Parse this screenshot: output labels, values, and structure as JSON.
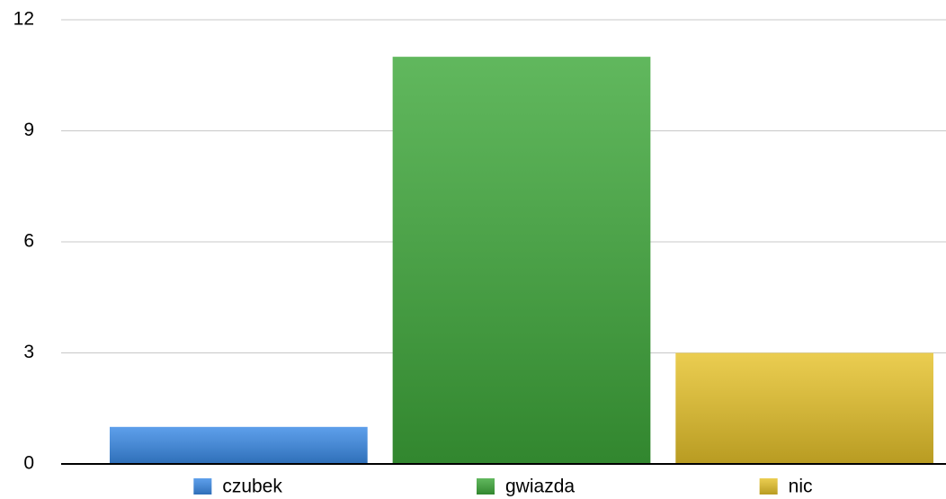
{
  "chart_data": {
    "type": "bar",
    "categories": [
      null
    ],
    "series": [
      {
        "name": "czubek",
        "color": "#3a8ae6",
        "values": [
          1
        ]
      },
      {
        "name": "gwiazda",
        "color": "#3ea83a",
        "values": [
          11
        ]
      },
      {
        "name": "nic",
        "color": "#e6c22a",
        "values": [
          3
        ]
      }
    ],
    "ylim": [
      0,
      12
    ],
    "yticks": [
      0,
      3,
      6,
      9,
      12
    ],
    "grid": true,
    "legend": "bottom"
  }
}
